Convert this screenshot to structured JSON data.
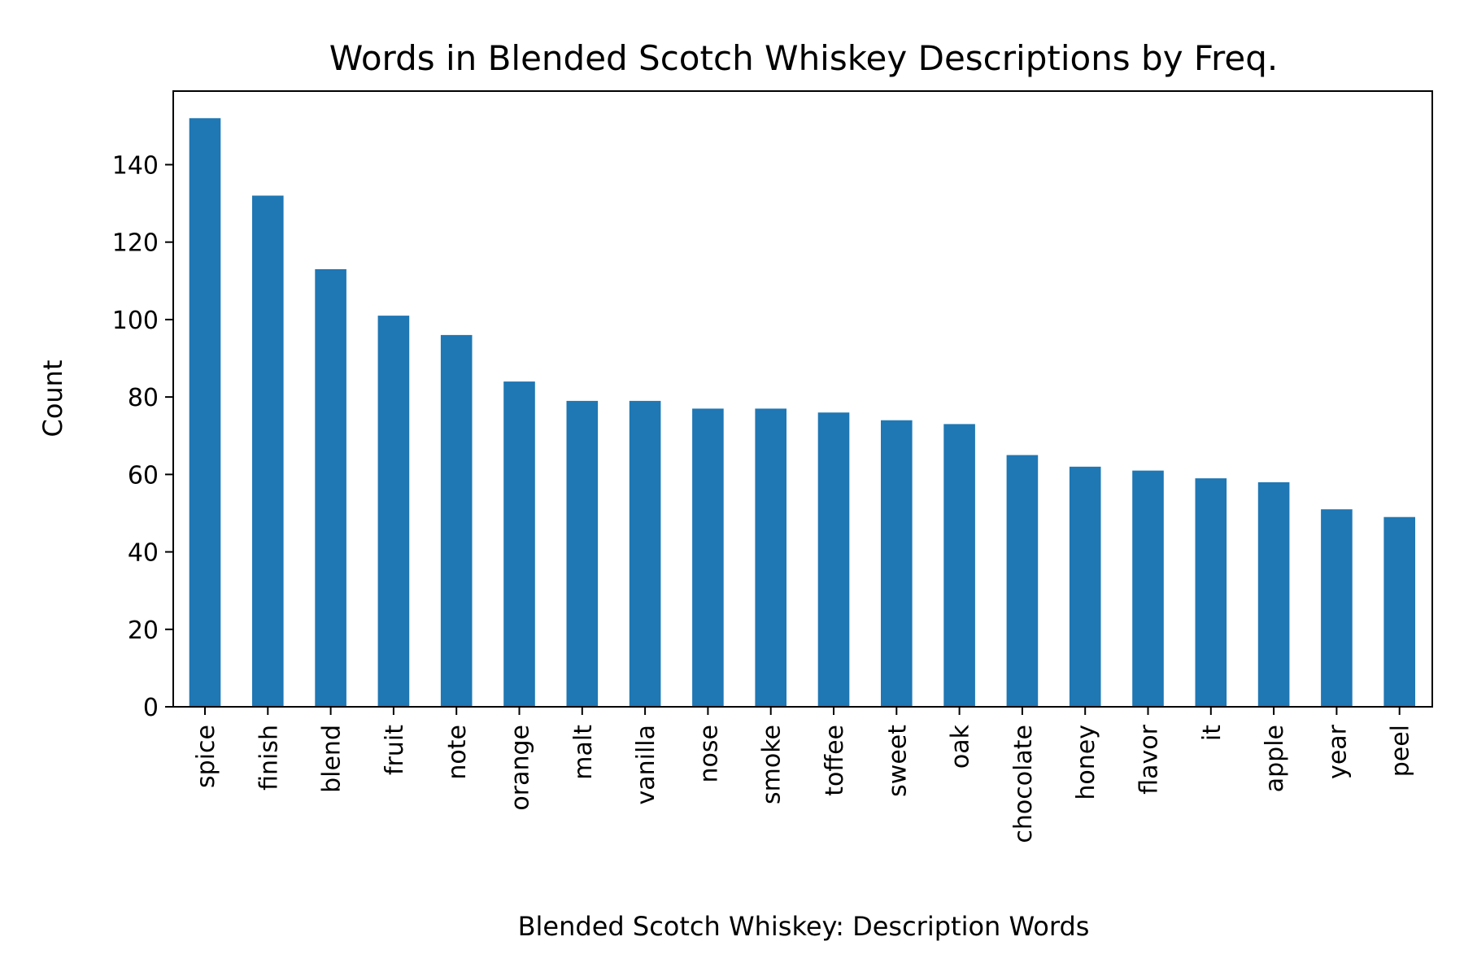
{
  "chart_data": {
    "type": "bar",
    "title": "Words in Blended Scotch Whiskey Descriptions by Freq.",
    "xlabel": "Blended Scotch Whiskey: Description Words",
    "ylabel": "Count",
    "categories": [
      "spice",
      "finish",
      "blend",
      "fruit",
      "note",
      "orange",
      "malt",
      "vanilla",
      "nose",
      "smoke",
      "toffee",
      "sweet",
      "oak",
      "chocolate",
      "honey",
      "flavor",
      "it",
      "apple",
      "year",
      "peel"
    ],
    "values": [
      152,
      132,
      113,
      101,
      96,
      84,
      79,
      79,
      77,
      77,
      76,
      74,
      73,
      65,
      62,
      61,
      59,
      58,
      51,
      49
    ],
    "ylim": [
      0,
      159
    ],
    "yticks": [
      0,
      20,
      40,
      60,
      80,
      100,
      120,
      140
    ],
    "grid": false,
    "legend": "none",
    "bar_color": "#1f77b4"
  }
}
